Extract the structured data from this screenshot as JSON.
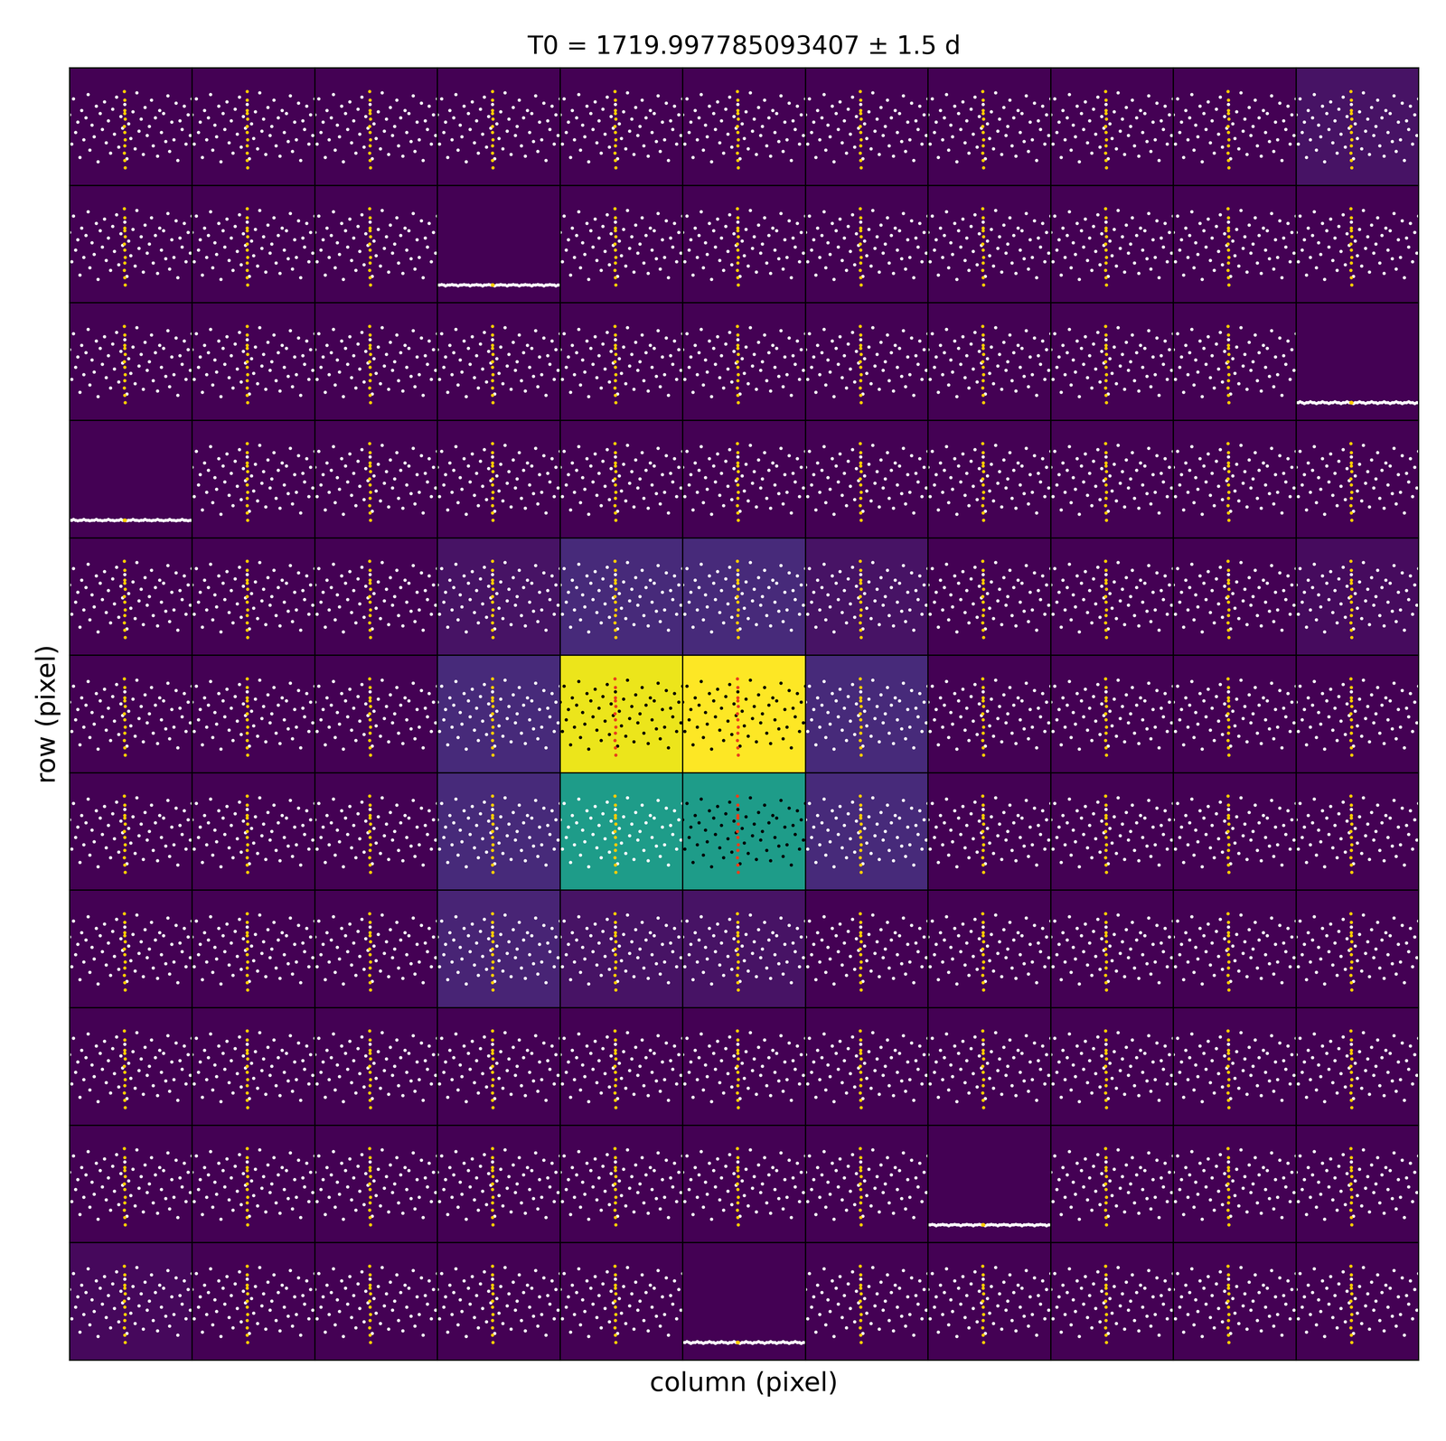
{
  "chart_data": {
    "type": "pixel_grid",
    "title": "T0 = 1719.997785093407 ± 1.5 d",
    "x_label": "column (pixel)",
    "y_label": "row (pixel)",
    "tick_labels": false,
    "cells": [
      [
        0,
        0,
        0,
        0,
        0,
        0,
        0,
        0,
        0,
        0,
        0.05
      ],
      [
        0,
        0,
        0,
        0,
        0,
        0,
        0,
        0,
        0,
        0,
        0
      ],
      [
        0,
        0,
        0,
        0,
        0,
        0,
        0,
        0,
        0,
        0,
        0
      ],
      [
        0,
        0,
        0,
        0,
        0,
        0,
        0,
        0,
        0,
        0,
        0
      ],
      [
        0,
        0,
        0,
        0.05,
        0.12,
        0.12,
        0.05,
        0,
        0,
        0,
        0.03
      ],
      [
        0,
        0,
        0,
        0.12,
        0.97,
        1.0,
        0.12,
        0,
        0,
        0,
        0
      ],
      [
        0,
        0,
        0,
        0.12,
        0.55,
        0.55,
        0.12,
        0,
        0,
        0,
        0
      ],
      [
        0,
        0,
        0,
        0.1,
        0.05,
        0.05,
        0,
        0,
        0,
        0,
        0
      ],
      [
        0,
        0,
        0,
        0,
        0,
        0,
        0,
        0,
        0,
        0,
        0
      ],
      [
        0,
        0,
        0,
        0,
        0,
        0,
        0,
        0,
        0,
        0,
        0
      ],
      [
        0.02,
        0,
        0,
        0,
        0,
        0,
        0,
        0,
        0,
        0,
        0
      ]
    ],
    "cell_range": [
      0,
      1
    ],
    "aperture": [
      [
        5,
        4
      ],
      [
        5,
        5
      ],
      [
        6,
        5
      ]
    ],
    "aperture_color": "black",
    "flat_pixels": [
      [
        1,
        3
      ],
      [
        2,
        10
      ],
      [
        3,
        0
      ],
      [
        9,
        7
      ],
      [
        10,
        5
      ]
    ],
    "light_curve": {
      "color": "white",
      "xlim": [
        -1.5,
        1.5
      ],
      "ylim": [
        -4,
        4
      ],
      "x": [
        -1.5,
        -1.45,
        -1.4,
        -1.35,
        -1.3,
        -1.25,
        -1.2,
        -1.15,
        -1.1,
        -1.05,
        -1.0,
        -0.95,
        -0.9,
        -0.85,
        -0.8,
        -0.75,
        -0.7,
        -0.65,
        -0.6,
        -0.55,
        -0.5,
        -0.45,
        -0.4,
        -0.35,
        -0.3,
        -0.25,
        -0.2,
        -0.15,
        -0.1,
        -0.05,
        0.0,
        0.05,
        0.1,
        0.15,
        0.2,
        0.25,
        0.3,
        0.35,
        0.4,
        0.45,
        0.5,
        0.55,
        0.6,
        0.65,
        0.7,
        0.75,
        0.8,
        0.85,
        0.9,
        0.95,
        1.0,
        1.05,
        1.1,
        1.15,
        1.2,
        1.25,
        1.3,
        1.35,
        1.4,
        1.45,
        1.5
      ],
      "values": [
        0.8,
        -1.2,
        1.9,
        -0.4,
        0.3,
        -2.1,
        1.1,
        -0.9,
        0.6,
        2.2,
        -1.6,
        0.1,
        -0.7,
        1.4,
        -2.4,
        0.9,
        -0.2,
        1.7,
        -1.1,
        0.4,
        -1.8,
        1.2,
        -0.5,
        2.0,
        -1.4,
        0.7,
        -0.1,
        1.5,
        -2.2,
        0.2,
        -0.8,
        1.0,
        -1.5,
        2.3,
        -0.3,
        0.5,
        -1.9,
        1.3,
        -0.6,
        0.0,
        1.8,
        -1.3,
        0.6,
        -2.0,
        1.1,
        -0.4,
        0.9,
        -1.0,
        2.1,
        -1.7,
        0.3,
        -0.9,
        1.6,
        -2.3,
        0.4,
        -0.2,
        1.4,
        -1.2,
        0.8,
        -0.6,
        1.9
      ],
      "flat_values": [
        -2.8,
        -2.8,
        -2.75,
        -2.8,
        -2.85,
        -2.8,
        -2.8,
        -2.75,
        -2.8,
        -2.8,
        -2.85,
        -2.8,
        -2.8,
        -2.75,
        -2.8,
        -2.8,
        -2.85,
        -2.8,
        -2.8,
        -2.75,
        -2.8,
        -2.8,
        -2.85,
        -2.8,
        -2.8,
        -2.75,
        -2.8,
        -2.8,
        -2.85,
        -2.8,
        -2.8,
        -2.75,
        -2.8,
        -2.8,
        -2.85,
        -2.8,
        -2.8,
        -2.75,
        -2.8,
        -2.8,
        -2.85,
        -2.8,
        -2.8,
        -2.75,
        -2.8,
        -2.8,
        -2.85,
        -2.8,
        -2.8,
        -2.75,
        -2.8,
        -2.8,
        -2.85,
        -2.8,
        -2.8,
        -2.75,
        -2.8,
        -2.8,
        -2.85,
        -2.8,
        -2.8
      ]
    },
    "transit": {
      "color": "#ffcc00",
      "aperture_color": "#e8401c",
      "x": [
        -0.16,
        -0.15,
        -0.15,
        -0.14,
        -0.16,
        -0.15,
        -0.14,
        -0.15,
        -0.16,
        -0.15,
        -0.14,
        -0.15
      ],
      "values": [
        2.4,
        1.8,
        1.1,
        0.5,
        0.0,
        -0.4,
        -0.9,
        -1.3,
        -1.8,
        -2.3,
        -2.8,
        0.9
      ],
      "flat_values": [
        -2.8,
        -2.8,
        -2.8,
        -2.8,
        -2.8,
        -2.8,
        -2.8,
        -2.8,
        -2.8,
        -2.8,
        -2.8,
        -2.8
      ]
    }
  }
}
